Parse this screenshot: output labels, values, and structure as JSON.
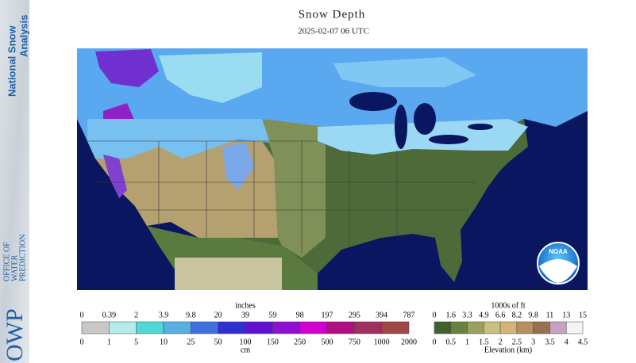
{
  "sidebar": {
    "title_lines": [
      "National Snow",
      "Analysis"
    ],
    "org_abbr": "OWP",
    "org_lines": [
      "OFFICE OF",
      "WATER",
      "PREDICTION"
    ]
  },
  "header": {
    "title": "Snow Depth",
    "subtitle": "2025-02-07 06 UTC"
  },
  "map": {
    "logo": "NOAA"
  },
  "snow_legend": {
    "unit_top": "inches",
    "labels_top": [
      0,
      0.39,
      2,
      3.9,
      9.8,
      20,
      39,
      59,
      98,
      197,
      295,
      394,
      787
    ],
    "colors": [
      "#c8c8c8",
      "#b4ecec",
      "#50d8d8",
      "#58b0e0",
      "#4070e0",
      "#3030d0",
      "#6010d0",
      "#9010d0",
      "#d000d0",
      "#b01080",
      "#a03060",
      "#a04848"
    ],
    "labels_bottom": [
      0,
      1,
      5,
      10,
      25,
      50,
      100,
      150,
      250,
      500,
      750,
      1000,
      2000
    ],
    "unit_bottom": "cm"
  },
  "elevation_legend": {
    "unit_top": "1000s of ft",
    "labels_top": [
      0,
      1.6,
      3.3,
      4.9,
      6.6,
      8.2,
      9.8,
      11,
      13,
      15
    ],
    "colors": [
      "#40602f",
      "#6a8040",
      "#9aa060",
      "#c8c080",
      "#d4b478",
      "#b89060",
      "#987050",
      "#c8a0c0",
      "#f4f4f4"
    ],
    "labels_bottom": [
      0,
      0.5,
      1,
      1.5,
      2,
      2.5,
      3,
      3.5,
      4,
      4.5
    ],
    "title": "Elevation (km)"
  }
}
